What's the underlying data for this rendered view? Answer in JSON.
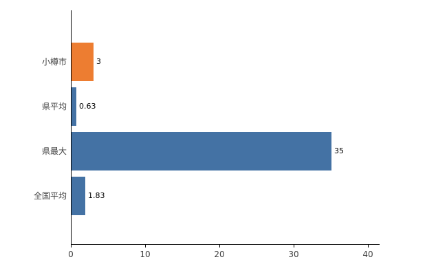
{
  "chart_data": {
    "type": "bar",
    "orientation": "horizontal",
    "title": "",
    "xlabel": "",
    "ylabel": "",
    "categories": [
      "小樽市",
      "県平均",
      "県最大",
      "全国平均"
    ],
    "values": [
      3,
      0.63,
      35,
      1.83
    ],
    "value_labels": [
      "3",
      "0.63",
      "35",
      "1.83"
    ],
    "bar_colors": [
      "#ed7d31",
      "#4472a4",
      "#4472a4",
      "#4472a4"
    ],
    "xlim": [
      0,
      41.5
    ],
    "x_ticks": [
      "0",
      "10",
      "20",
      "30",
      "40"
    ],
    "x_tick_values": [
      0,
      10,
      20,
      30,
      40
    ],
    "grid": false,
    "legend": "none"
  },
  "colors": {
    "axis": "#000000",
    "background": "#ffffff",
    "orange_bar": "#ed7d31",
    "blue_bar": "#4472a4"
  }
}
